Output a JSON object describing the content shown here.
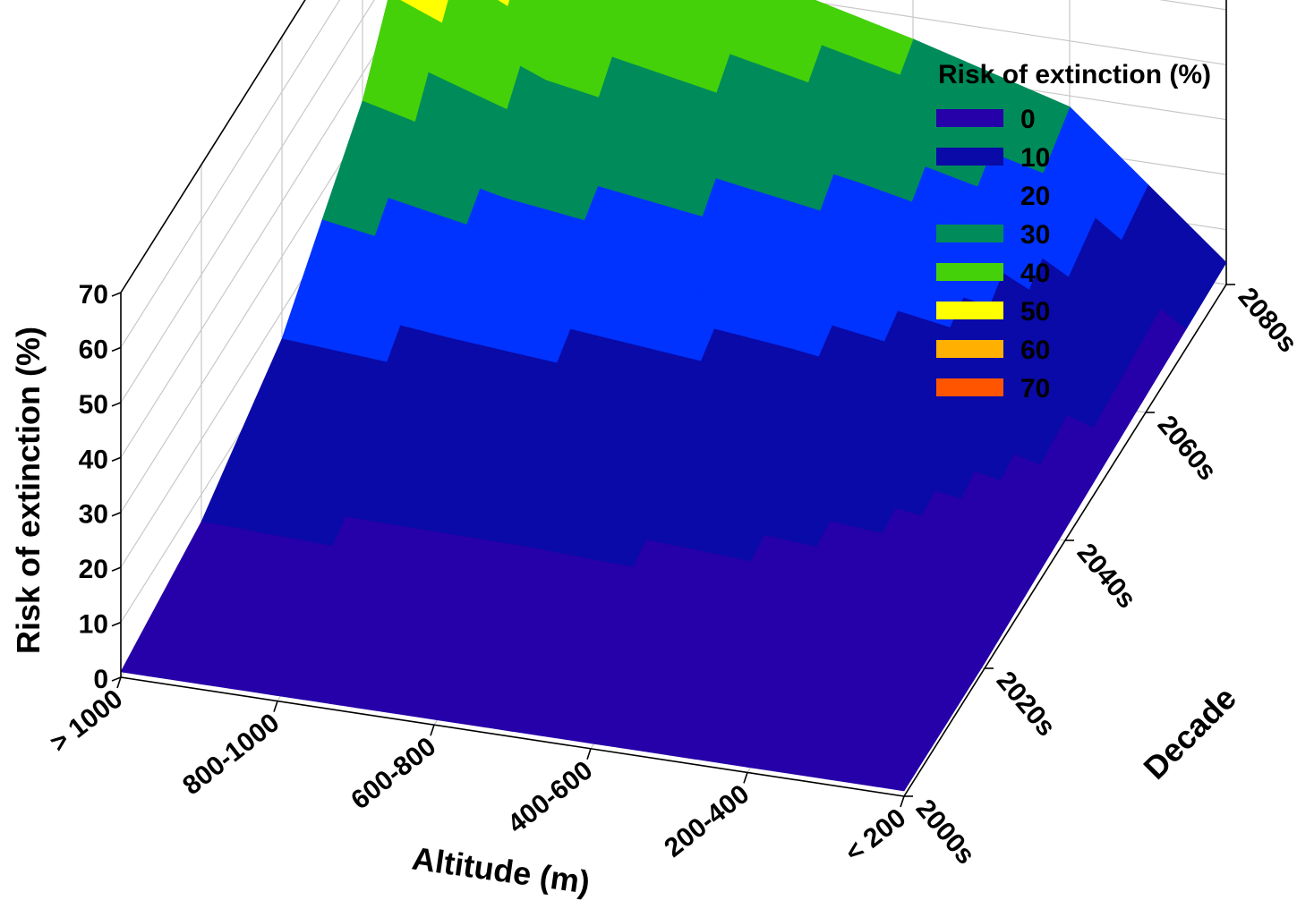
{
  "chart_data": {
    "type": "surface3d",
    "zlabel": "Risk of extinction (%)",
    "xlabel": "Altitude (m)",
    "ylabel": "Decade",
    "altitude_categories": [
      ">  1000",
      "800-1000",
      "600-800",
      "400-600",
      "200-400",
      "< 200"
    ],
    "decade_categories": [
      "2000s",
      "2020s",
      "2040s",
      "2060s",
      "2080s"
    ],
    "zlim": [
      0,
      70
    ],
    "z_ticks": [
      "0",
      "10",
      "20",
      "30",
      "40",
      "50",
      "60",
      "70"
    ],
    "grid": true,
    "legend": {
      "title": "Risk of extinction (%)",
      "position": "top-right",
      "entries": [
        {
          "label": "0",
          "color": "#2600a8"
        },
        {
          "label": "10",
          "color": "#0a0aa8"
        },
        {
          "label": "20",
          "color": "#0033ff"
        },
        {
          "label": "30",
          "color": "#008c5a"
        },
        {
          "label": "40",
          "color": "#44d10a"
        },
        {
          "label": "50",
          "color": "#ffff00"
        },
        {
          "label": "60",
          "color": "#ffb000"
        },
        {
          "label": "70",
          "color": "#ff5500"
        }
      ]
    },
    "values": [
      [
        1,
        1,
        1,
        1,
        1,
        1
      ],
      [
        5,
        4,
        4,
        3,
        2,
        1
      ],
      [
        15,
        13,
        11,
        9,
        6,
        2
      ],
      [
        35,
        28,
        24,
        20,
        15,
        3
      ],
      [
        70,
        50,
        43,
        36,
        28,
        4
      ]
    ]
  }
}
